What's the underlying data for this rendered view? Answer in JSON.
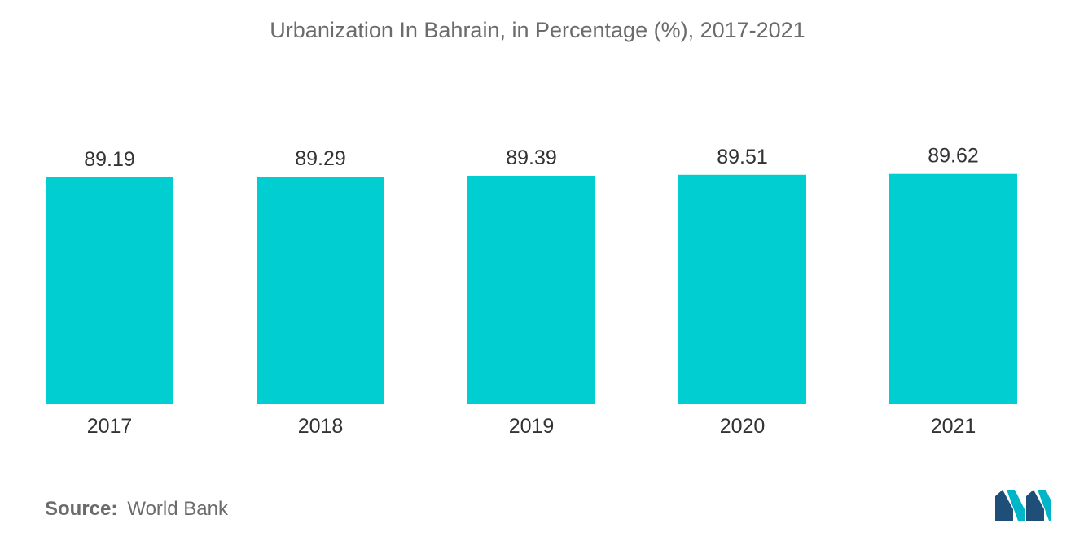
{
  "chart_data": {
    "type": "bar",
    "title": "Urbanization In Bahrain, in Percentage (%), 2017-2021",
    "categories": [
      "2017",
      "2018",
      "2019",
      "2020",
      "2021"
    ],
    "values": [
      89.19,
      89.29,
      89.39,
      89.51,
      89.62
    ],
    "value_labels": [
      "89.19",
      "89.29",
      "89.39",
      "89.51",
      "89.62"
    ],
    "xlabel": "",
    "ylabel": "",
    "grid": false,
    "legend": "none",
    "bar_color": "#00ced1"
  },
  "source": {
    "label": "Source:",
    "text": "World Bank"
  },
  "logo": {
    "icon": "mordor-intelligence-logo-icon",
    "colors": [
      "#1f4e79",
      "#00b5c8"
    ]
  }
}
